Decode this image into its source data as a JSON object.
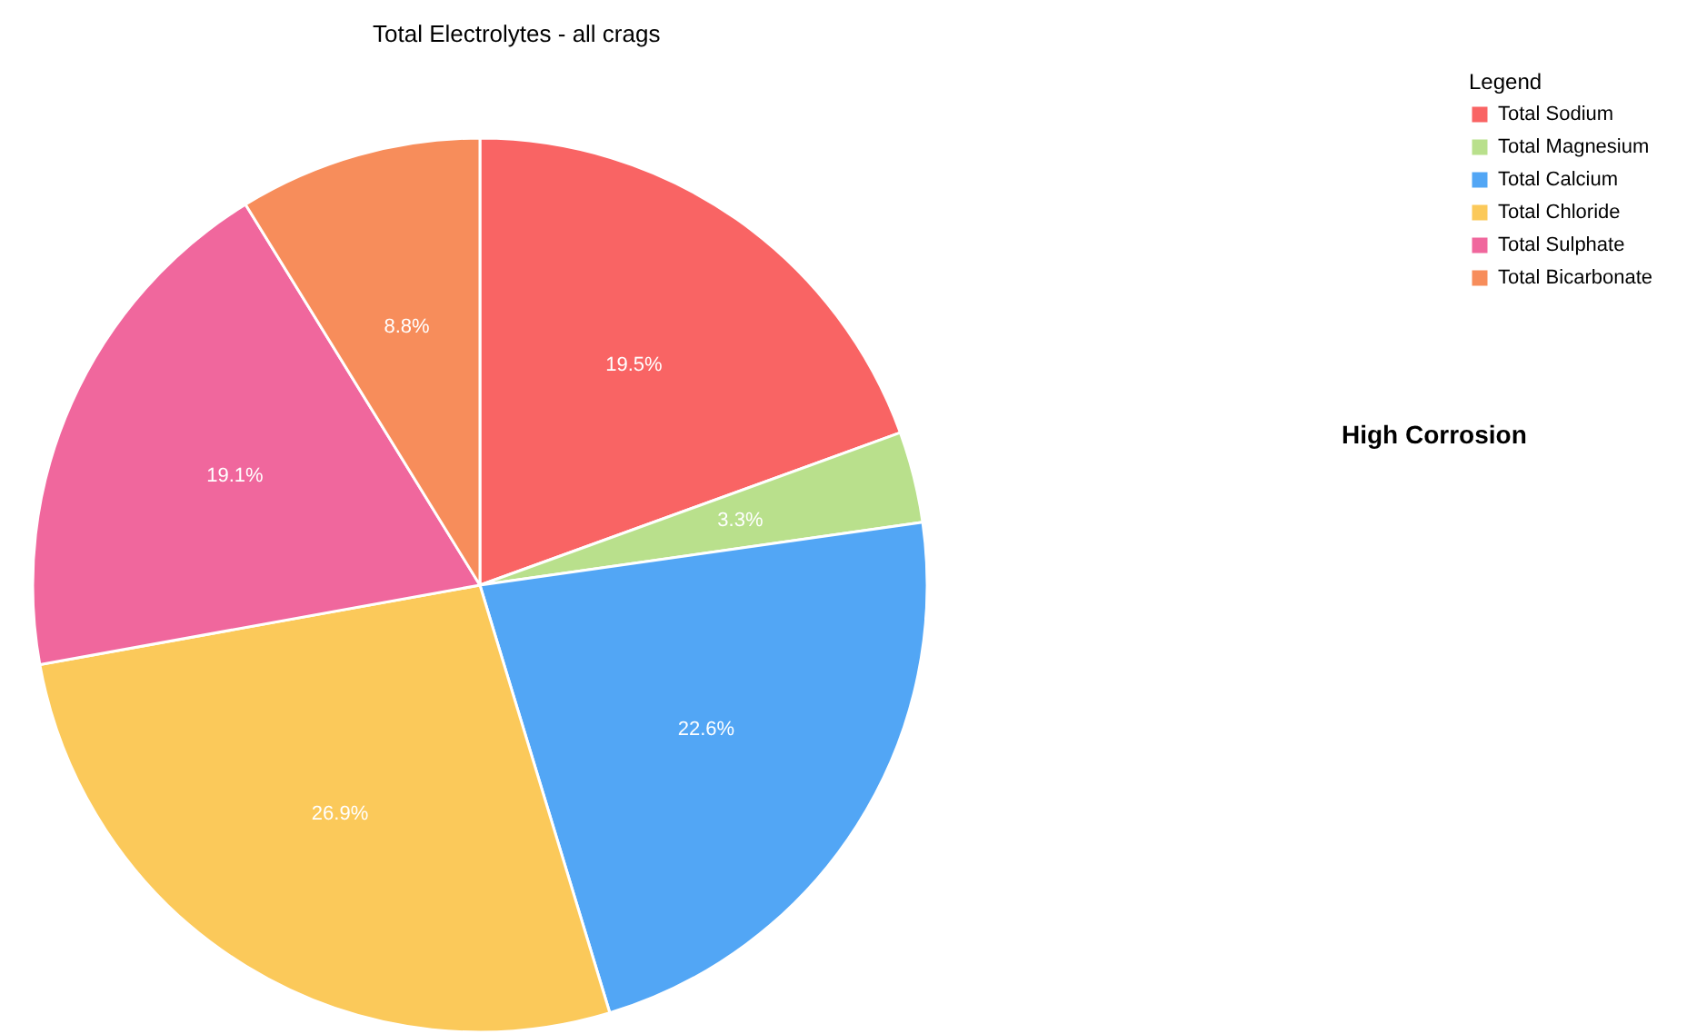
{
  "chart_data": {
    "type": "pie",
    "title": "Total Electrolytes - all crags",
    "legend_title": "Legend",
    "categories": [
      "Total Sodium",
      "Total Magnesium",
      "Total Calcium",
      "Total Chloride",
      "Total Sulphate",
      "Total Bicarbonate"
    ],
    "values": [
      19.5,
      3.3,
      22.6,
      26.9,
      19.1,
      8.8
    ],
    "colors": [
      "#f96464",
      "#b9e08c",
      "#52a6f5",
      "#fbc95a",
      "#f0679d",
      "#f78d5b"
    ],
    "value_labels": [
      "19.5%",
      "3.3%",
      "22.6%",
      "26.9%",
      "19.1%",
      "8.8%"
    ],
    "legend": "top right",
    "annotations": [
      "High Corrosion"
    ]
  }
}
